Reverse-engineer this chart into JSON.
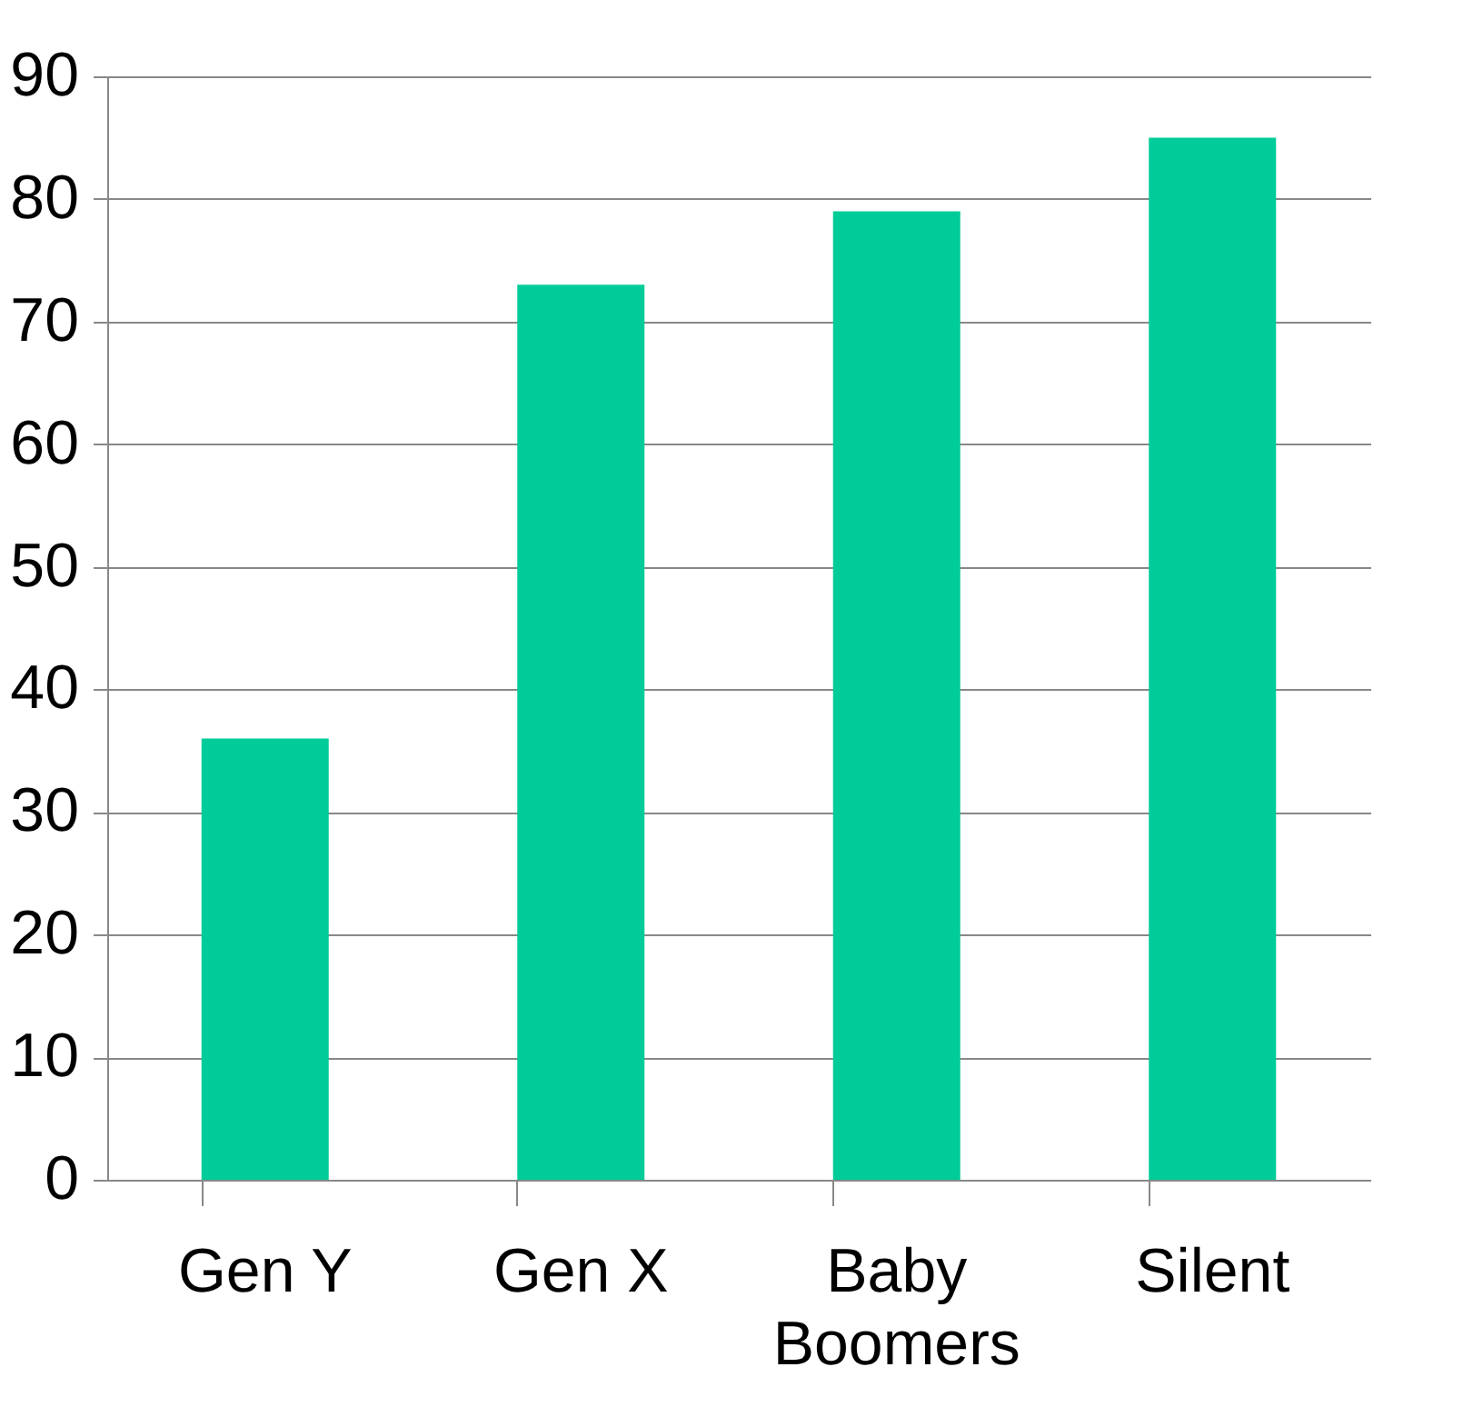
{
  "chart_data": {
    "type": "bar",
    "categories": [
      "Gen Y",
      "Gen X",
      "Baby Boomers",
      "Silent"
    ],
    "values": [
      36,
      73,
      79,
      85
    ],
    "color": "#00cc99",
    "ylim": [
      0,
      90
    ],
    "yticks": [
      0,
      10,
      20,
      30,
      40,
      50,
      60,
      70,
      80,
      90
    ],
    "grid": "y"
  }
}
